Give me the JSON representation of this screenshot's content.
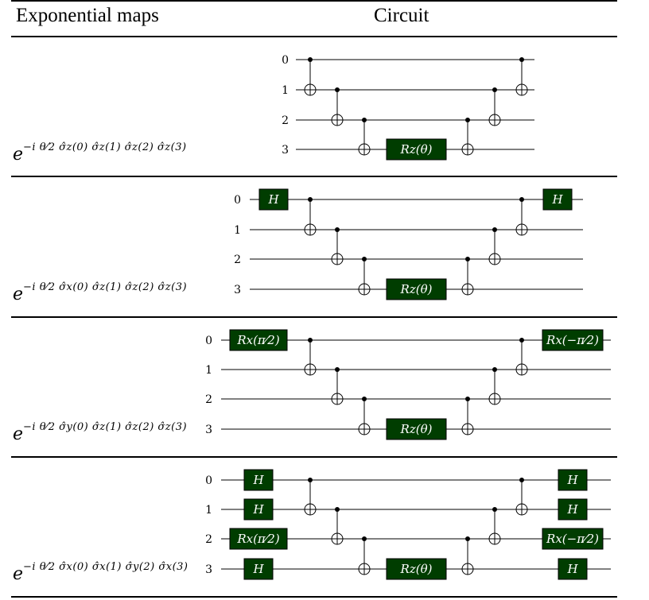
{
  "headers": {
    "col1": "Exponential maps",
    "col2": "Circuit"
  },
  "rows": [
    {
      "expression": {
        "base": "e",
        "exponent": "−i θ⁄2 σ̂z(0) σ̂z(1) σ̂z(2) σ̂z(3)"
      },
      "circuit": {
        "qubits": [
          "0",
          "1",
          "2",
          "3"
        ],
        "pre_gates": [],
        "rz_label": "Rz(θ)",
        "post_gates": []
      }
    },
    {
      "expression": {
        "base": "e",
        "exponent": "−i θ⁄2 σ̂x(0) σ̂z(1) σ̂z(2) σ̂z(3)"
      },
      "circuit": {
        "qubits": [
          "0",
          "1",
          "2",
          "3"
        ],
        "pre_gates": [
          {
            "qubit": 0,
            "label": "H"
          }
        ],
        "rz_label": "Rz(θ)",
        "post_gates": [
          {
            "qubit": 0,
            "label": "H"
          }
        ]
      }
    },
    {
      "expression": {
        "base": "e",
        "exponent": "−i θ⁄2 σ̂y(0) σ̂z(1) σ̂z(2) σ̂z(3)"
      },
      "circuit": {
        "qubits": [
          "0",
          "1",
          "2",
          "3"
        ],
        "pre_gates": [
          {
            "qubit": 0,
            "label": "Rx(π⁄2)"
          }
        ],
        "rz_label": "Rz(θ)",
        "post_gates": [
          {
            "qubit": 0,
            "label": "Rx(−π⁄2)"
          }
        ]
      }
    },
    {
      "expression": {
        "base": "e",
        "exponent": "−i θ⁄2 σ̂x(0) σ̂x(1) σ̂y(2) σ̂x(3)"
      },
      "circuit": {
        "qubits": [
          "0",
          "1",
          "2",
          "3"
        ],
        "pre_gates": [
          {
            "qubit": 0,
            "label": "H"
          },
          {
            "qubit": 1,
            "label": "H"
          },
          {
            "qubit": 2,
            "label": "Rx(π⁄2)"
          },
          {
            "qubit": 3,
            "label": "H"
          }
        ],
        "rz_label": "Rz(θ)",
        "post_gates": [
          {
            "qubit": 0,
            "label": "H"
          },
          {
            "qubit": 1,
            "label": "H"
          },
          {
            "qubit": 2,
            "label": "Rx(−π⁄2)"
          },
          {
            "qubit": 3,
            "label": "H"
          }
        ]
      }
    }
  ],
  "colors": {
    "gate_fill": "#003d00",
    "gate_text": "#ffffff",
    "line": "#000000"
  }
}
